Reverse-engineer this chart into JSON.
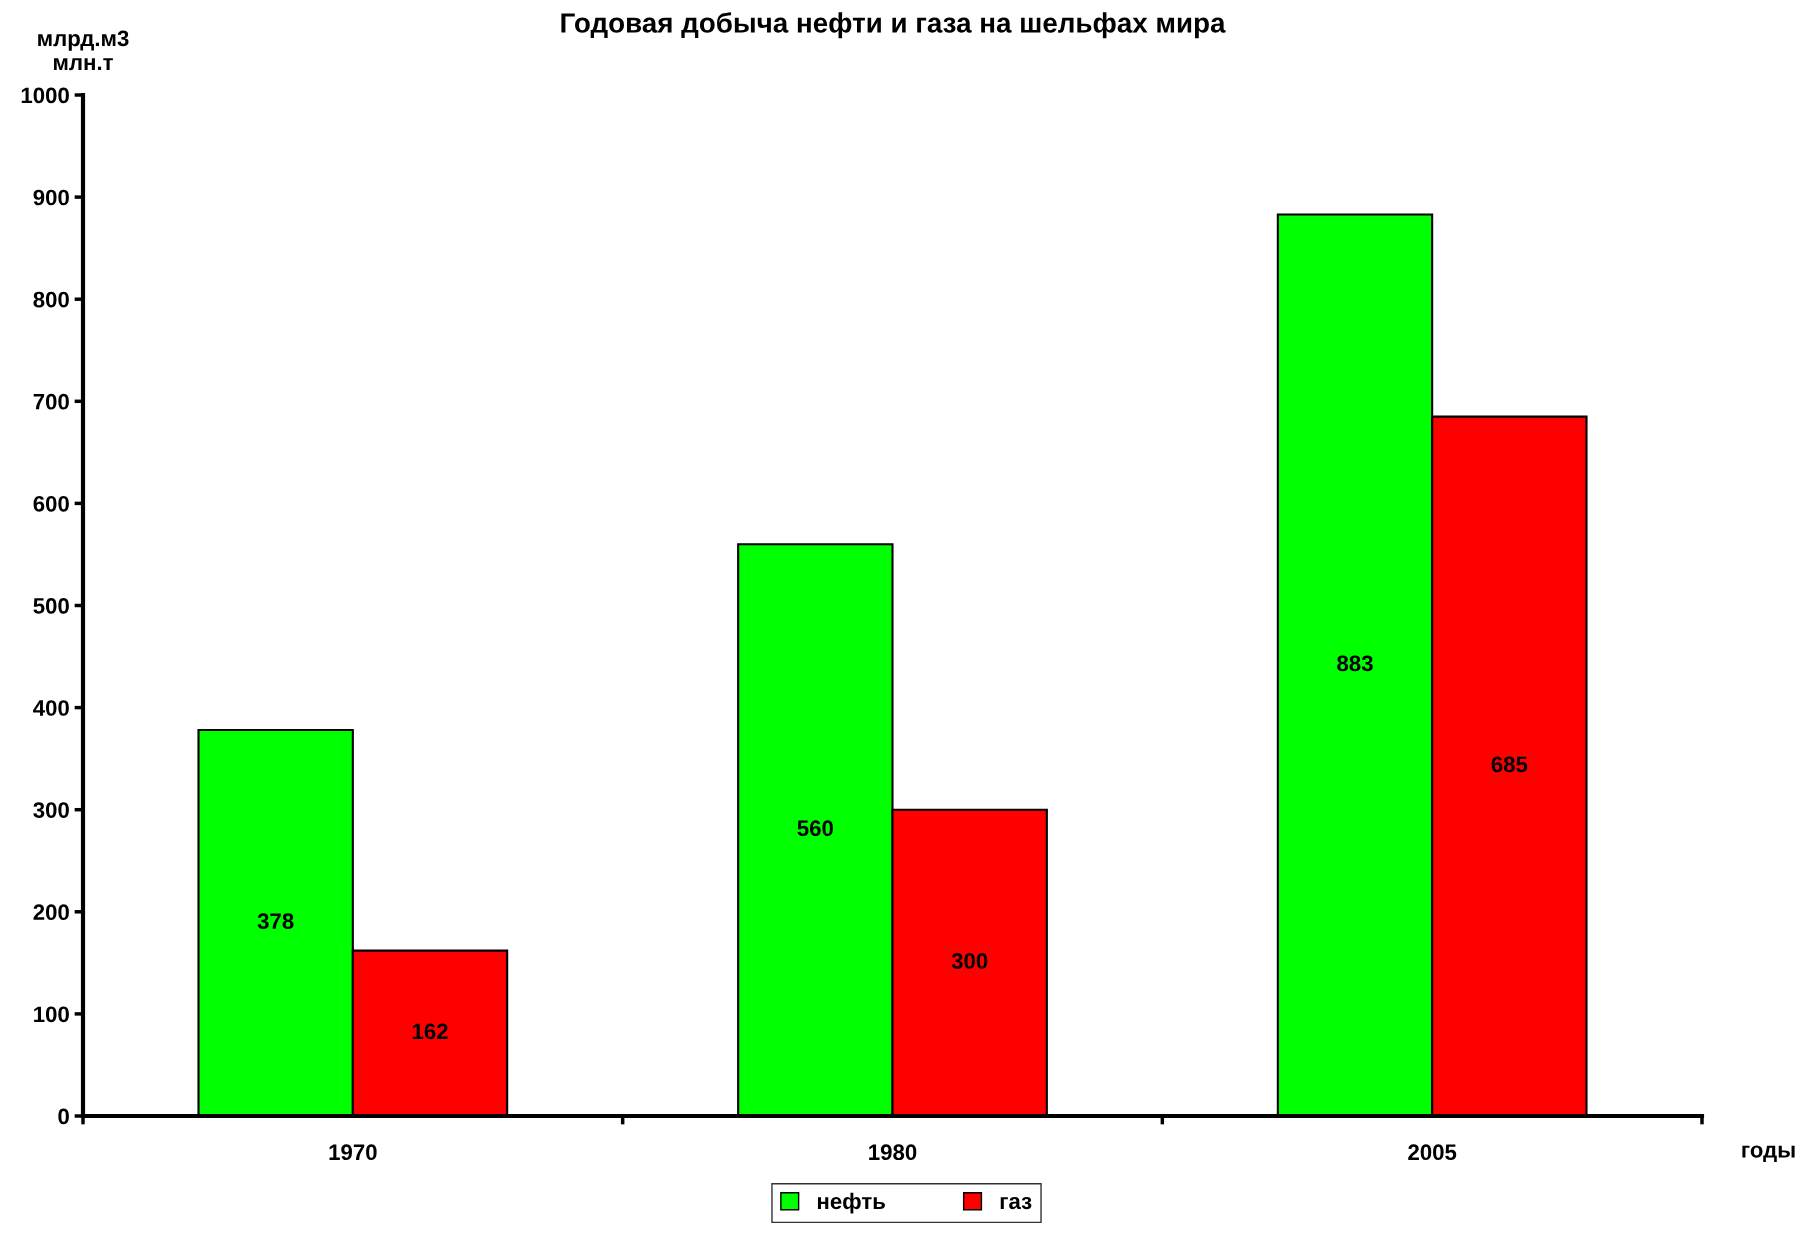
{
  "chart_data": {
    "type": "bar",
    "title": "Годовая добыча нефти и газа на шельфах мира",
    "xlabel": "годы",
    "ylabel": "млрд.м3\nмлн.т",
    "categories": [
      "1970",
      "1980",
      "2005"
    ],
    "series": [
      {
        "name": "нефть",
        "color": "#00ff00",
        "values": [
          378,
          560,
          883
        ]
      },
      {
        "name": "газ",
        "color": "#ff0000",
        "values": [
          162,
          300,
          685
        ]
      }
    ],
    "ylim": [
      0,
      1000
    ],
    "yticks": [
      0,
      100,
      200,
      300,
      400,
      500,
      600,
      700,
      800,
      900,
      1000
    ],
    "data_labels": true,
    "legend": "bottom",
    "grid": false
  }
}
